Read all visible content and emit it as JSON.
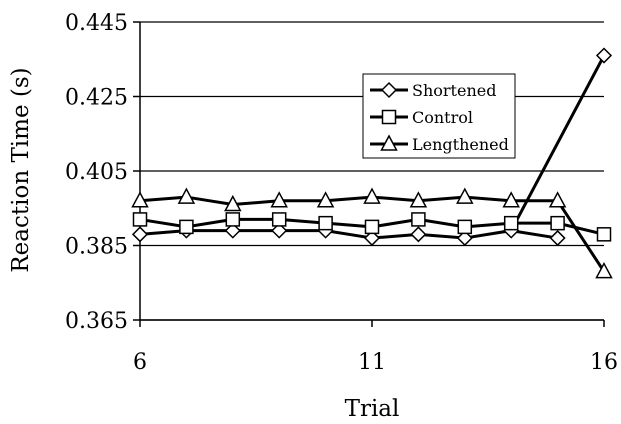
{
  "chart_data": {
    "type": "line",
    "title": "",
    "xlabel": "Trial",
    "ylabel": "Reaction Time (s)",
    "xlim": [
      6,
      16
    ],
    "ylim": [
      0.365,
      0.445
    ],
    "xticks": [
      6,
      11,
      16
    ],
    "yticks": [
      0.365,
      0.385,
      0.405,
      0.425,
      0.445
    ],
    "ytick_labels": [
      "0.365",
      "0.385",
      "0.405",
      "0.425",
      "0.445"
    ],
    "xtick_labels": [
      "6",
      "11",
      "16"
    ],
    "grid": "horizontal",
    "legend_position": "top-right",
    "series": [
      {
        "name": "Shortened",
        "marker": "diamond",
        "x": [
          6,
          7,
          8,
          9,
          10,
          11,
          12,
          13,
          14,
          15,
          16
        ],
        "y": [
          0.388,
          0.389,
          0.389,
          0.389,
          0.389,
          0.387,
          0.388,
          0.387,
          0.389,
          0.387,
          0.436
        ],
        "segment_breaks": [
          [
            15,
            16
          ]
        ],
        "jump_from_x": 14
      },
      {
        "name": "Control",
        "marker": "square",
        "x": [
          6,
          7,
          8,
          9,
          10,
          11,
          12,
          13,
          14,
          15,
          16
        ],
        "y": [
          0.392,
          0.39,
          0.392,
          0.392,
          0.391,
          0.39,
          0.392,
          0.39,
          0.391,
          0.391,
          0.388
        ]
      },
      {
        "name": "Lengthened",
        "marker": "triangle",
        "x": [
          6,
          7,
          8,
          9,
          10,
          11,
          12,
          13,
          14,
          15,
          16
        ],
        "y": [
          0.397,
          0.398,
          0.396,
          0.397,
          0.397,
          0.398,
          0.397,
          0.398,
          0.397,
          0.397,
          0.378
        ]
      }
    ]
  }
}
